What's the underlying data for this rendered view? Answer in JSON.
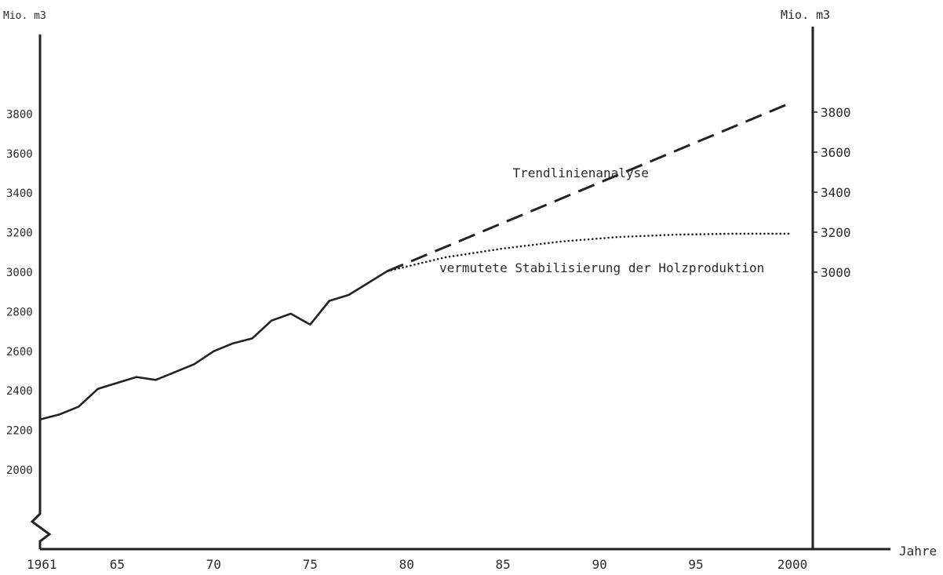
{
  "chart_data": {
    "type": "line",
    "y_unit_left": "Mio. m3",
    "y_unit_right": "Mio. m3",
    "xlabel": "Jahre",
    "xlim": [
      1961,
      2000
    ],
    "ylim": [
      1800,
      4000
    ],
    "y_ticks_left": [
      2000,
      2200,
      2400,
      2600,
      2800,
      3000,
      3200,
      3400,
      3600,
      3800
    ],
    "y_ticks_right": [
      3000,
      3200,
      3400,
      3600,
      3800
    ],
    "x_ticks": [
      {
        "value": 1961,
        "label": "1961"
      },
      {
        "value": 1965,
        "label": "65"
      },
      {
        "value": 1970,
        "label": "70"
      },
      {
        "value": 1975,
        "label": "75"
      },
      {
        "value": 1980,
        "label": "80"
      },
      {
        "value": 1985,
        "label": "85"
      },
      {
        "value": 1990,
        "label": "90"
      },
      {
        "value": 1995,
        "label": "95"
      },
      {
        "value": 2000,
        "label": "2000"
      }
    ],
    "series": [
      {
        "style": "solid",
        "x": [
          1961,
          1962,
          1963,
          1964,
          1965,
          1966,
          1967,
          1968,
          1969,
          1970,
          1971,
          1972,
          1973,
          1974,
          1975,
          1976,
          1977,
          1978,
          1979
        ],
        "y": [
          2255,
          2280,
          2320,
          2410,
          2440,
          2470,
          2455,
          2495,
          2535,
          2600,
          2640,
          2665,
          2755,
          2790,
          2735,
          2855,
          2885,
          2945,
          3005
        ]
      },
      {
        "name": "Trendlinienanalyse",
        "style": "dashed",
        "x": [
          1979,
          2000
        ],
        "y": [
          3005,
          3860
        ]
      },
      {
        "name": "vermutete Stabilisierung der Holzproduktion",
        "style": "dotted",
        "x": [
          1979,
          1982,
          1985,
          1988,
          1991,
          1994,
          1997,
          2000
        ],
        "y": [
          3005,
          3075,
          3120,
          3155,
          3178,
          3190,
          3195,
          3195
        ]
      }
    ],
    "annotations": [
      {
        "text": "Trendlinienanalyse",
        "x": 1985.5,
        "y": 3500
      },
      {
        "text": "vermutete Stabilisierung der Holzproduktion",
        "x": 1981.7,
        "y": 3020
      }
    ],
    "grid": false,
    "legend": "none"
  }
}
